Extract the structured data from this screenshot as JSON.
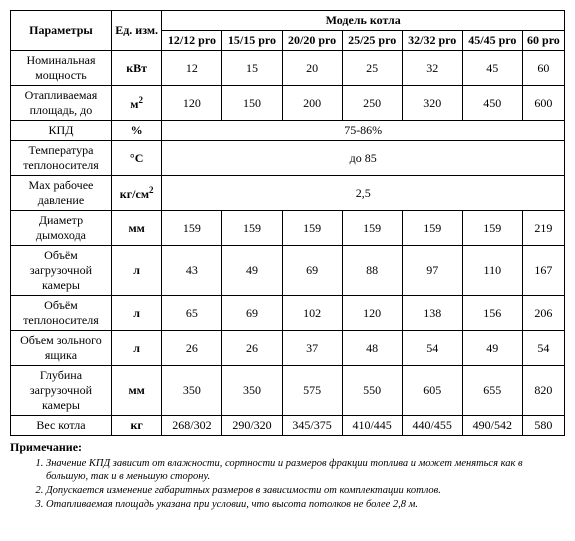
{
  "header": {
    "param": "Параметры",
    "unit": "Ед. изм.",
    "modelGroup": "Модель котла",
    "models": [
      "12/12 pro",
      "15/15 pro",
      "20/20 pro",
      "25/25 pro",
      "32/32 pro",
      "45/45 pro",
      "60 pro"
    ]
  },
  "rows": [
    {
      "param": "Номинальная мощность",
      "unit": "кВт",
      "values": [
        "12",
        "15",
        "20",
        "25",
        "32",
        "45",
        "60"
      ]
    },
    {
      "param": "Отапливаемая площадь, до",
      "unit_html": "м<sup>2</sup>",
      "values": [
        "120",
        "150",
        "200",
        "250",
        "320",
        "450",
        "600"
      ]
    },
    {
      "param": "КПД",
      "unit": "%",
      "merged": "75-86%"
    },
    {
      "param": "Температура теплоносителя",
      "unit": "°С",
      "merged": "до 85"
    },
    {
      "param": "Max рабочее давление",
      "unit_html": "кг/см<sup>2</sup>",
      "merged": "2,5"
    },
    {
      "param": "Диаметр дымохода",
      "unit": "мм",
      "values": [
        "159",
        "159",
        "159",
        "159",
        "159",
        "159",
        "219"
      ]
    },
    {
      "param": "Объём загрузочной камеры",
      "unit": "л",
      "values": [
        "43",
        "49",
        "69",
        "88",
        "97",
        "110",
        "167"
      ]
    },
    {
      "param": "Объём теплоносителя",
      "unit": "л",
      "values": [
        "65",
        "69",
        "102",
        "120",
        "138",
        "156",
        "206"
      ]
    },
    {
      "param": "Объем зольного ящика",
      "unit": "л",
      "values": [
        "26",
        "26",
        "37",
        "48",
        "54",
        "49",
        "54"
      ]
    },
    {
      "param": "Глубина загрузочной камеры",
      "unit": "мм",
      "values": [
        "350",
        "350",
        "575",
        "550",
        "605",
        "655",
        "820"
      ]
    },
    {
      "param": "Вес котла",
      "unit": "кг",
      "values": [
        "268/302",
        "290/320",
        "345/375",
        "410/445",
        "440/455",
        "490/542",
        "580"
      ]
    }
  ],
  "notes": {
    "title": "Примечание:",
    "items": [
      "Значение КПД зависит от влажности, сортности и размеров фракции топлива и может меняться как в большую, так и в меньшую сторону.",
      "Допускается изменение габаритных размеров в зависимости от комплектации котлов.",
      "Отапливаемая площадь указана при условии, что высота потолков не более 2,8 м."
    ]
  }
}
